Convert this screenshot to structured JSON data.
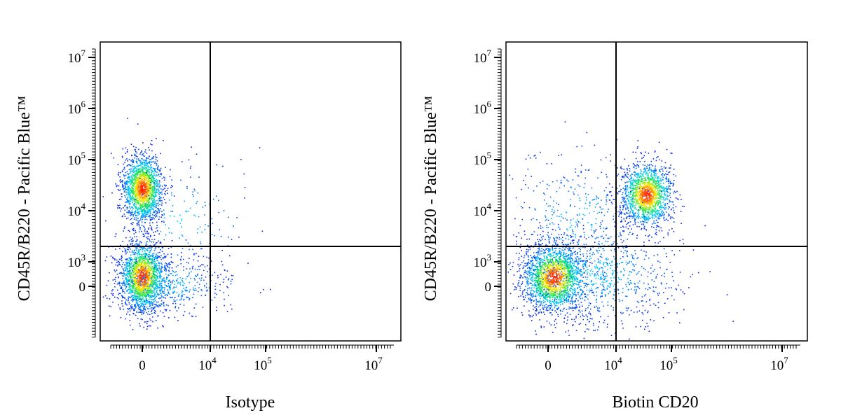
{
  "chart_data": [
    {
      "type": "scatter",
      "plot_kind": "flow-cytometry-density",
      "xlabel": "Isotype",
      "ylabel": "CD45R/B220 - Pacific Blue™",
      "scale": "biexponential",
      "x_ticks": [
        {
          "base": "0",
          "sup": ""
        },
        {
          "base": "10",
          "sup": "4"
        },
        {
          "base": "10",
          "sup": "5"
        },
        {
          "base": "10",
          "sup": "7"
        }
      ],
      "y_ticks": [
        {
          "base": "0",
          "sup": ""
        },
        {
          "base": "10",
          "sup": "3"
        },
        {
          "base": "10",
          "sup": "4"
        },
        {
          "base": "10",
          "sup": "5"
        },
        {
          "base": "10",
          "sup": "6"
        },
        {
          "base": "10",
          "sup": "7"
        }
      ],
      "quadrant_gate": {
        "x": 10000,
        "y": 2000
      },
      "populations": [
        {
          "x": 0,
          "y": 15000,
          "relative_density": 0.9
        },
        {
          "x": 0,
          "y": 300,
          "relative_density": 1.0
        }
      ]
    },
    {
      "type": "scatter",
      "plot_kind": "flow-cytometry-density",
      "xlabel": "Biotin CD20",
      "ylabel": "CD45R/B220 - Pacific Blue™",
      "scale": "biexponential",
      "x_ticks": [
        {
          "base": "0",
          "sup": ""
        },
        {
          "base": "10",
          "sup": "4"
        },
        {
          "base": "10",
          "sup": "5"
        },
        {
          "base": "10",
          "sup": "7"
        }
      ],
      "y_ticks": [
        {
          "base": "0",
          "sup": ""
        },
        {
          "base": "10",
          "sup": "3"
        },
        {
          "base": "10",
          "sup": "4"
        },
        {
          "base": "10",
          "sup": "5"
        },
        {
          "base": "10",
          "sup": "6"
        },
        {
          "base": "10",
          "sup": "7"
        }
      ],
      "quadrant_gate": {
        "x": 10000,
        "y": 2000
      },
      "populations": [
        {
          "x": 40000,
          "y": 15000,
          "relative_density": 0.8
        },
        {
          "x": 0,
          "y": 300,
          "relative_density": 1.0
        }
      ]
    }
  ],
  "colors": {
    "low": "#0a1ee6",
    "mid_low": "#00c8ff",
    "mid": "#14e650",
    "mid_high": "#ffeb00",
    "high": "#ff1e00"
  }
}
